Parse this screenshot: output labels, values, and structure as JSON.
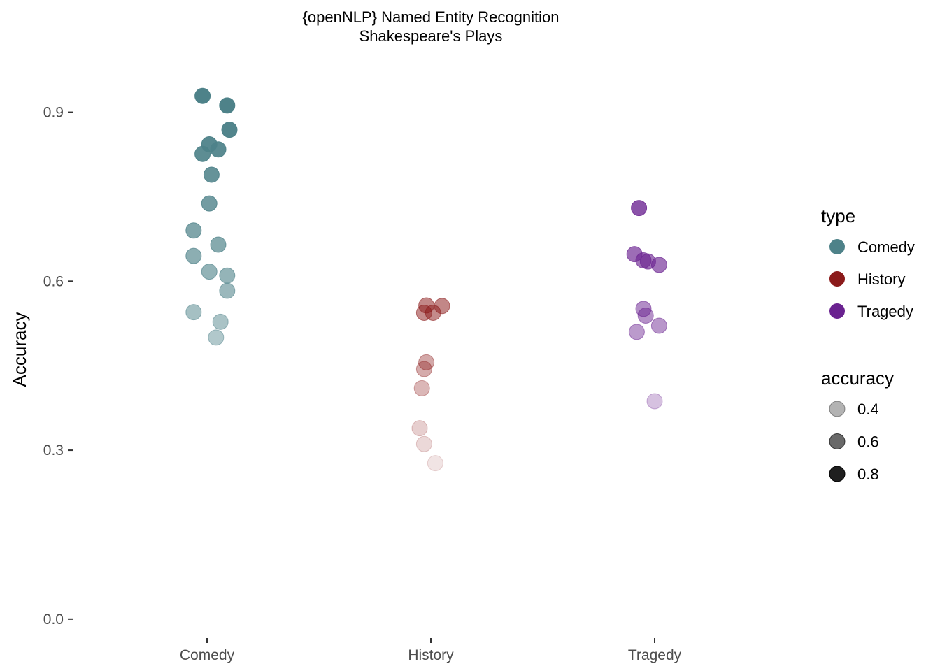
{
  "chart_data": {
    "type": "scatter",
    "title": "{openNLP} Named Entity Recognition",
    "subtitle": "Shakespeare's Plays",
    "xlabel": "",
    "ylabel": "Accuracy",
    "categories": [
      "Comedy",
      "History",
      "Tragedy"
    ],
    "ylim": [
      -0.03,
      1.0
    ],
    "yticks": [
      0.0,
      0.3,
      0.6,
      0.9
    ],
    "ytick_labels": [
      "0.0",
      "0.3",
      "0.6",
      "0.9"
    ],
    "grid": false,
    "legend_position": "right",
    "legend_color_title": "type",
    "legend_alpha_title": "accuracy",
    "legend_alpha_values": [
      0.4,
      0.6,
      0.8
    ],
    "legend_alpha_labels": [
      "0.4",
      "0.6",
      "0.8"
    ],
    "colors": {
      "Comedy": "#4e8289",
      "History": "#8b1a1a",
      "Tragedy": "#6a2290"
    },
    "series": [
      {
        "name": "Comedy",
        "points": [
          {
            "x": -0.02,
            "y": 0.929
          },
          {
            "x": 0.09,
            "y": 0.912
          },
          {
            "x": 0.1,
            "y": 0.869
          },
          {
            "x": 0.01,
            "y": 0.843
          },
          {
            "x": 0.05,
            "y": 0.834
          },
          {
            "x": -0.02,
            "y": 0.826
          },
          {
            "x": 0.02,
            "y": 0.789
          },
          {
            "x": 0.01,
            "y": 0.738
          },
          {
            "x": -0.06,
            "y": 0.69
          },
          {
            "x": 0.05,
            "y": 0.665
          },
          {
            "x": -0.06,
            "y": 0.645
          },
          {
            "x": 0.01,
            "y": 0.617
          },
          {
            "x": 0.09,
            "y": 0.61
          },
          {
            "x": 0.09,
            "y": 0.583
          },
          {
            "x": -0.06,
            "y": 0.545
          },
          {
            "x": 0.06,
            "y": 0.528
          },
          {
            "x": 0.04,
            "y": 0.5
          }
        ]
      },
      {
        "name": "History",
        "points": [
          {
            "x": -0.02,
            "y": 0.557
          },
          {
            "x": 0.05,
            "y": 0.556
          },
          {
            "x": -0.03,
            "y": 0.544
          },
          {
            "x": 0.01,
            "y": 0.544
          },
          {
            "x": -0.02,
            "y": 0.456
          },
          {
            "x": -0.03,
            "y": 0.444
          },
          {
            "x": -0.04,
            "y": 0.41
          },
          {
            "x": -0.05,
            "y": 0.339
          },
          {
            "x": -0.03,
            "y": 0.311
          },
          {
            "x": 0.02,
            "y": 0.277
          }
        ]
      },
      {
        "name": "Tragedy",
        "points": [
          {
            "x": -0.07,
            "y": 0.73
          },
          {
            "x": -0.09,
            "y": 0.648
          },
          {
            "x": -0.05,
            "y": 0.637
          },
          {
            "x": -0.03,
            "y": 0.635
          },
          {
            "x": 0.02,
            "y": 0.629
          },
          {
            "x": -0.05,
            "y": 0.551
          },
          {
            "x": -0.04,
            "y": 0.539
          },
          {
            "x": 0.02,
            "y": 0.521
          },
          {
            "x": -0.08,
            "y": 0.51
          },
          {
            "x": 0.0,
            "y": 0.387
          }
        ]
      }
    ]
  }
}
